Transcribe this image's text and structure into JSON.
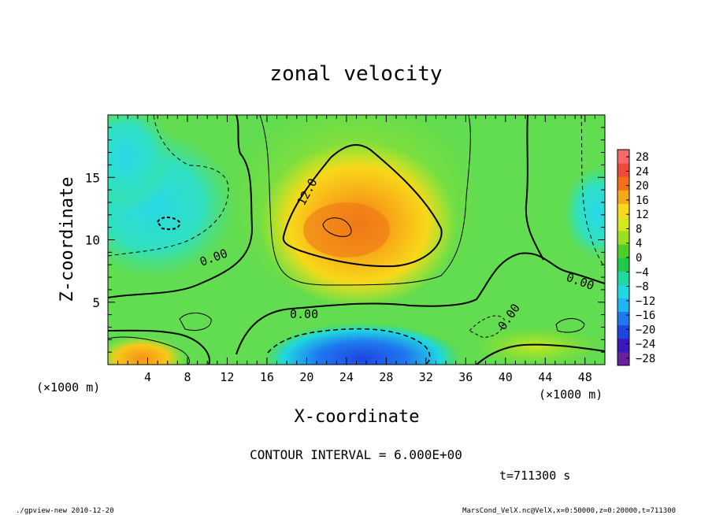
{
  "chart_data": {
    "type": "heatmap",
    "title": "zonal velocity",
    "xlabel": "X-coordinate",
    "ylabel": "Z-coordinate",
    "x_unit_label_left": "(×1000 m)",
    "x_unit_label_right": "(×1000 m)",
    "xlim": [
      0,
      50
    ],
    "ylim": [
      0,
      20
    ],
    "x_ticks": [
      4,
      8,
      12,
      16,
      20,
      24,
      28,
      32,
      36,
      40,
      44,
      48
    ],
    "y_ticks": [
      5,
      10,
      15
    ],
    "colorbar": {
      "ticks": [
        28,
        24,
        20,
        16,
        12,
        8,
        4,
        0,
        -4,
        -8,
        -12,
        -16,
        -20,
        -24,
        -28
      ],
      "tick_labels": [
        "28",
        "24",
        "20",
        "16",
        "12",
        "8",
        "4",
        "0",
        "−4",
        "−8",
        "−12",
        "−16",
        "−20",
        "−24",
        "−28"
      ],
      "range": [
        -30,
        30
      ],
      "colors": [
        "#6a1fa0",
        "#3a18c0",
        "#1f45e0",
        "#1f78f0",
        "#1fb4f4",
        "#1fd8e0",
        "#20d8a0",
        "#22c84a",
        "#4cd028",
        "#9be020",
        "#d8e81e",
        "#f8d81a",
        "#f8a818",
        "#f47018",
        "#f04a3a",
        "#f86a6a"
      ]
    },
    "contour_labels": [
      "12.0",
      "0.00",
      "0.00",
      "0.00",
      "0.00"
    ],
    "contour_interval_text": "CONTOUR INTERVAL = 6.000E+00",
    "time_text": "t=711300 s",
    "grid": false
  },
  "footer": {
    "left": "./gpview-new  2010-12-20",
    "right": "MarsCond_VelX.nc@VelX,x=0:50000,z=0:20000,t=711300"
  }
}
